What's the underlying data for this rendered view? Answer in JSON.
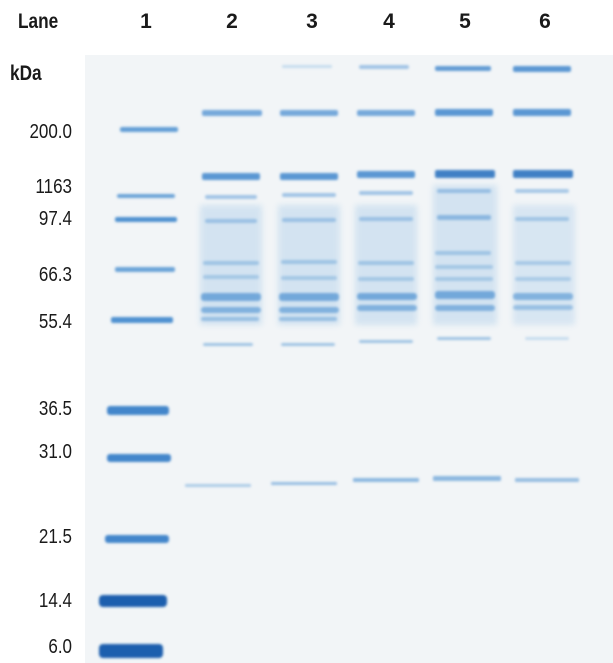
{
  "header": {
    "lane_label": "Lane",
    "unit_label": "kDa"
  },
  "lanes": [
    "1",
    "2",
    "3",
    "4",
    "5",
    "6"
  ],
  "markers": [
    "200.0",
    "1163",
    "97.4",
    "66.3",
    "55.4",
    "36.5",
    "31.0",
    "21.5",
    "14.4",
    "6.0"
  ],
  "colors": {
    "band_dark": "#1a5fae",
    "band_light": "#4a8fd0",
    "gel_bg": "#f2f5f7"
  }
}
